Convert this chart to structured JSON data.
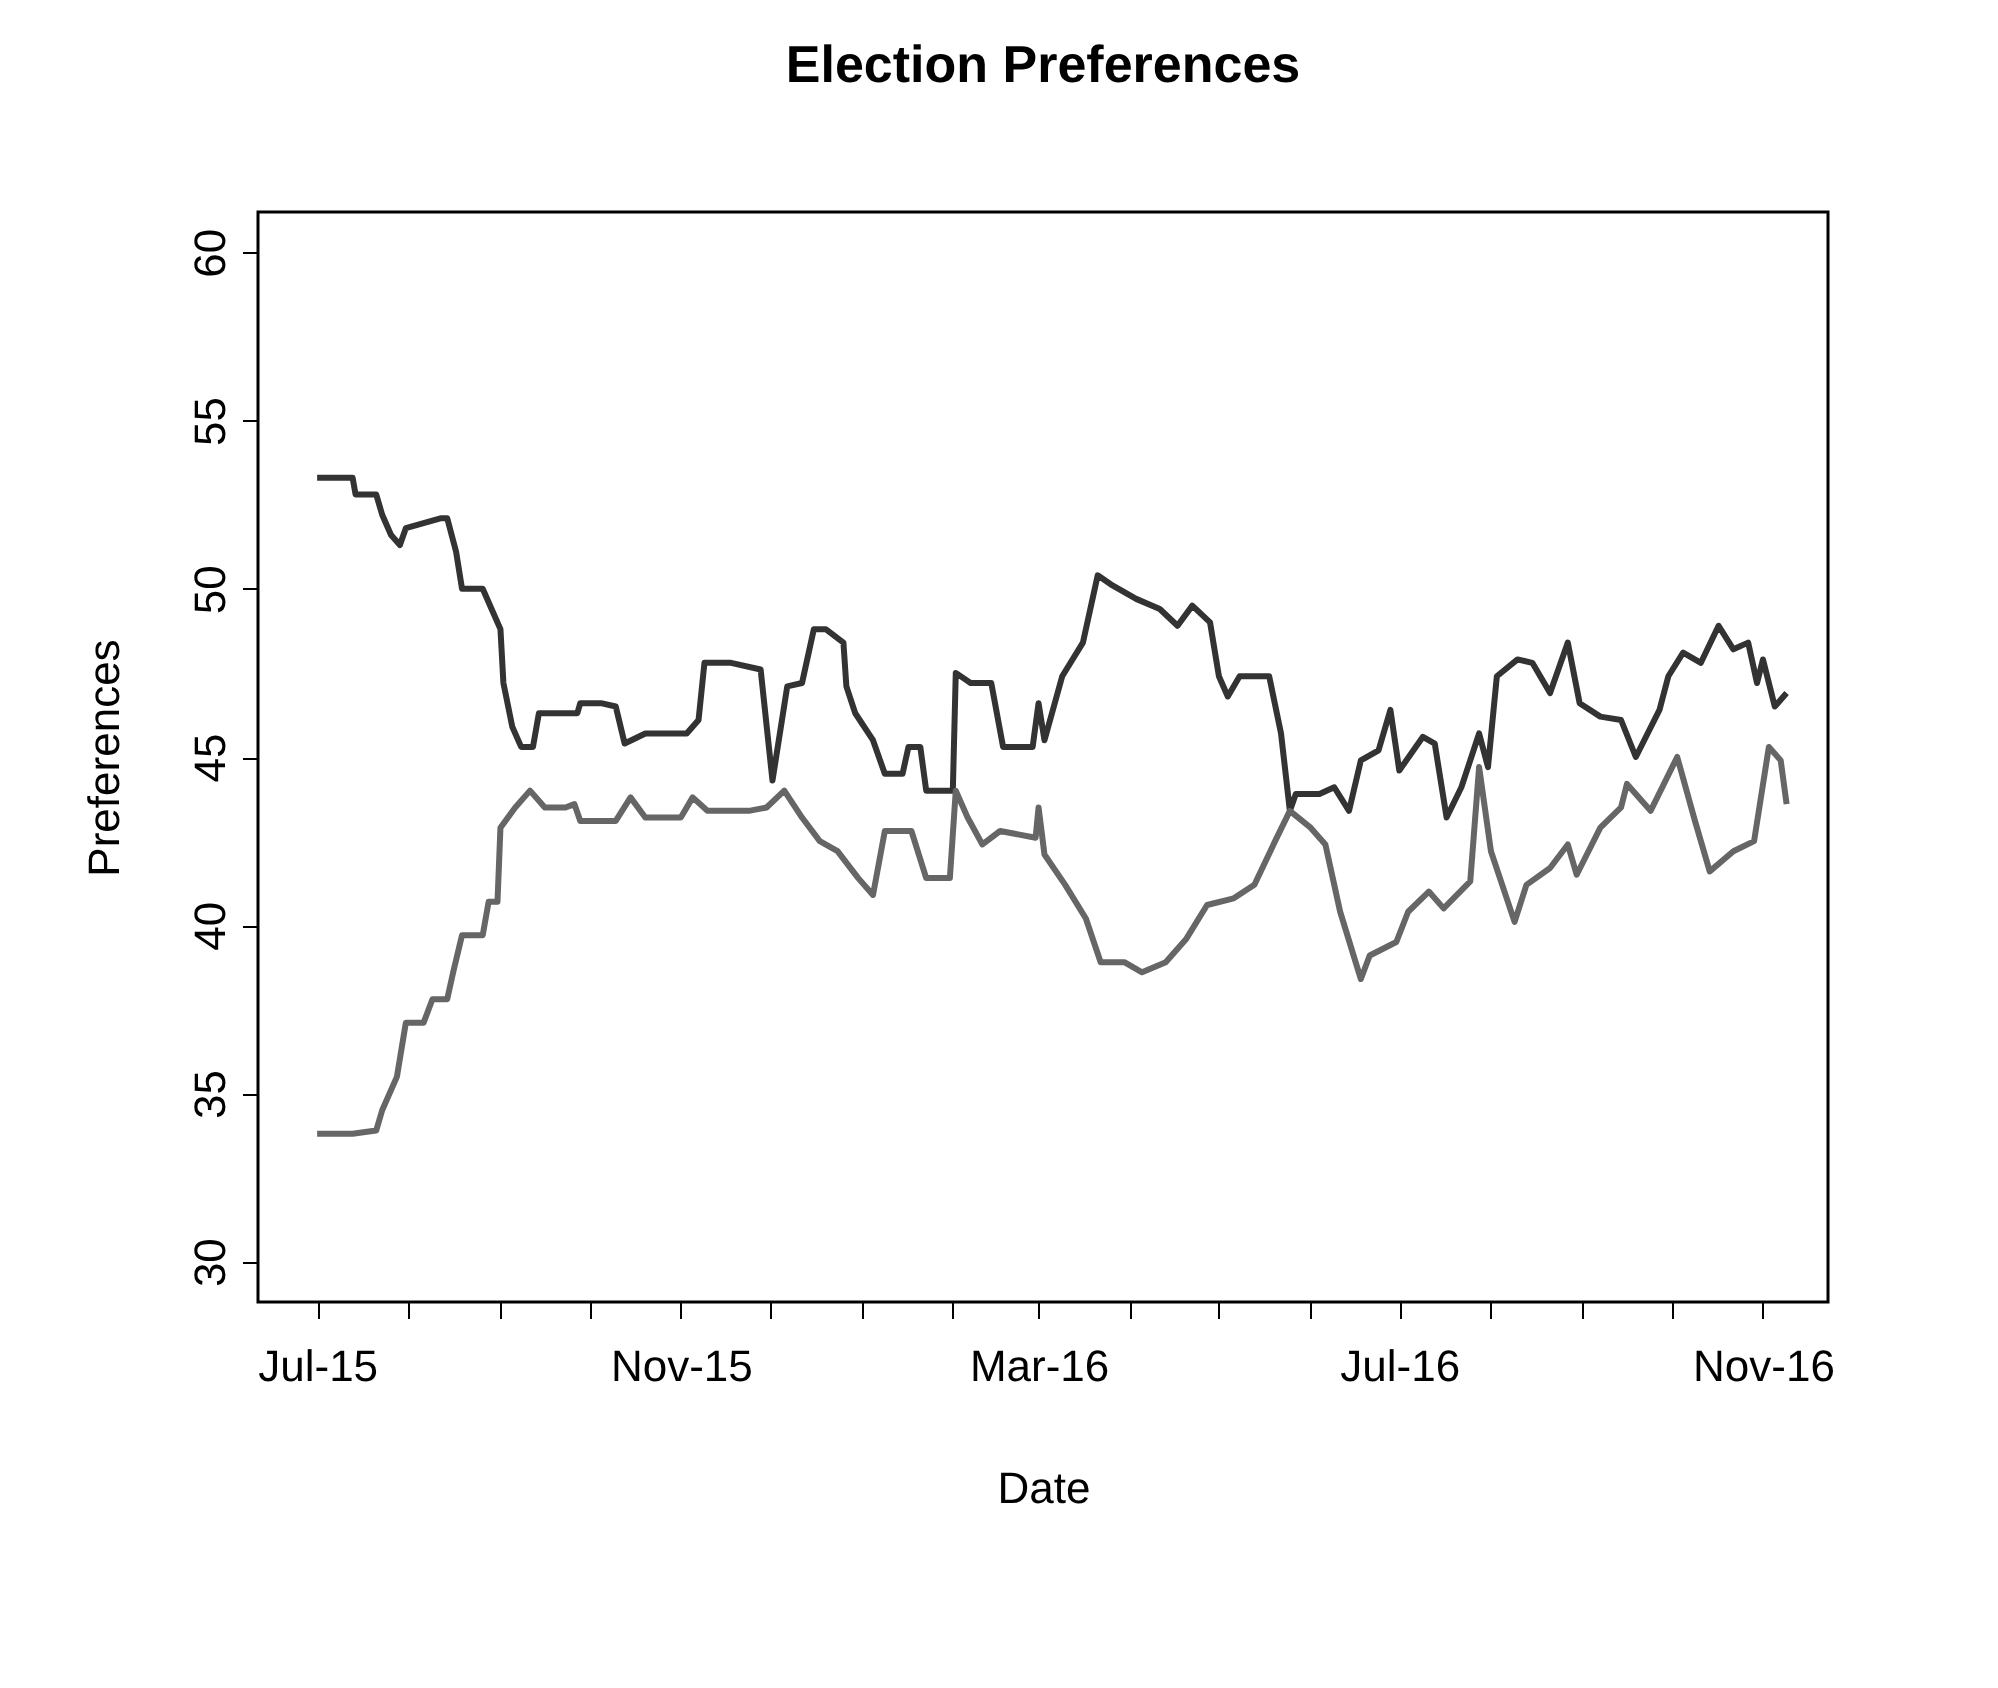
{
  "chart_data": {
    "type": "line",
    "title": "Election Preferences",
    "xlabel": "Date",
    "ylabel": "Preferences",
    "xlim": [
      "2015-06-11",
      "2016-11-23"
    ],
    "ylim": [
      28.8,
      61.2
    ],
    "yticks": [
      30,
      35,
      40,
      45,
      50,
      55,
      60
    ],
    "xticks": [
      {
        "value": "2015-07-01",
        "label": "Jul-15"
      },
      {
        "value": "2015-08-01",
        "label": null
      },
      {
        "value": "2015-09-01",
        "label": null
      },
      {
        "value": "2015-10-01",
        "label": null
      },
      {
        "value": "2015-11-01",
        "label": "Nov-15"
      },
      {
        "value": "2015-12-01",
        "label": null
      },
      {
        "value": "2016-01-01",
        "label": null
      },
      {
        "value": "2016-02-01",
        "label": null
      },
      {
        "value": "2016-03-01",
        "label": "Mar-16"
      },
      {
        "value": "2016-04-01",
        "label": null
      },
      {
        "value": "2016-05-01",
        "label": null
      },
      {
        "value": "2016-06-01",
        "label": null
      },
      {
        "value": "2016-07-01",
        "label": "Jul-16"
      },
      {
        "value": "2016-08-01",
        "label": null
      },
      {
        "value": "2016-09-01",
        "label": null
      },
      {
        "value": "2016-10-01",
        "label": null
      },
      {
        "value": "2016-11-01",
        "label": "Nov-16"
      }
    ],
    "grid": false,
    "series": [
      {
        "color": "#333333",
        "x": [
          "2015-07-01",
          "2015-07-13",
          "2015-07-14",
          "2015-07-21",
          "2015-07-23",
          "2015-07-26",
          "2015-07-29",
          "2015-07-31",
          "2015-08-12",
          "2015-08-14",
          "2015-08-17",
          "2015-08-19",
          "2015-08-26",
          "2015-08-29",
          "2015-09-01",
          "2015-09-02",
          "2015-09-05",
          "2015-09-08",
          "2015-09-12",
          "2015-09-14",
          "2015-09-27",
          "2015-09-28",
          "2015-10-05",
          "2015-10-10",
          "2015-10-13",
          "2015-10-20",
          "2015-11-03",
          "2015-11-07",
          "2015-11-09",
          "2015-11-18",
          "2015-11-28",
          "2015-12-02",
          "2015-12-07",
          "2015-12-12",
          "2015-12-16",
          "2015-12-20",
          "2015-12-26",
          "2015-12-27",
          "2015-12-30",
          "2016-01-05",
          "2016-01-09",
          "2016-01-15",
          "2016-01-17",
          "2016-01-21",
          "2016-01-23",
          "2016-02-01",
          "2016-02-02",
          "2016-02-07",
          "2016-02-14",
          "2016-02-18",
          "2016-02-28",
          "2016-03-01",
          "2016-03-03",
          "2016-03-09",
          "2016-03-16",
          "2016-03-21",
          "2016-03-26",
          "2016-04-03",
          "2016-04-11",
          "2016-04-17",
          "2016-04-22",
          "2016-04-28",
          "2016-05-01",
          "2016-05-04",
          "2016-05-08",
          "2016-05-18",
          "2016-05-22",
          "2016-05-25",
          "2016-05-27",
          "2016-06-04",
          "2016-06-09",
          "2016-06-14",
          "2016-06-18",
          "2016-06-24",
          "2016-06-28",
          "2016-07-01",
          "2016-07-09",
          "2016-07-13",
          "2016-07-17",
          "2016-07-22",
          "2016-07-28",
          "2016-07-31",
          "2016-08-03",
          "2016-08-10",
          "2016-08-15",
          "2016-08-21",
          "2016-08-27",
          "2016-08-31",
          "2016-09-07",
          "2016-09-14",
          "2016-09-19",
          "2016-09-27",
          "2016-09-30",
          "2016-10-05",
          "2016-10-11",
          "2016-10-17",
          "2016-10-22",
          "2016-10-27",
          "2016-10-30",
          "2016-11-01",
          "2016-11-05",
          "2016-11-09"
        ],
        "values": [
          53.3,
          53.3,
          52.8,
          52.8,
          52.2,
          51.6,
          51.3,
          51.8,
          52.1,
          52.1,
          51.1,
          50.0,
          50.0,
          49.4,
          48.8,
          47.2,
          45.9,
          45.3,
          45.3,
          46.3,
          46.3,
          46.6,
          46.6,
          46.5,
          45.4,
          45.7,
          45.7,
          46.1,
          47.8,
          47.8,
          47.6,
          44.3,
          47.1,
          47.2,
          48.8,
          48.8,
          48.4,
          47.1,
          46.3,
          45.5,
          44.5,
          44.5,
          45.3,
          45.3,
          44.0,
          44.0,
          47.5,
          47.2,
          47.2,
          45.3,
          45.3,
          46.6,
          45.5,
          47.4,
          48.4,
          50.4,
          50.1,
          49.7,
          49.4,
          48.9,
          49.5,
          49.0,
          47.4,
          46.8,
          47.4,
          47.4,
          45.7,
          43.4,
          43.9,
          43.9,
          44.1,
          43.4,
          44.9,
          45.2,
          46.4,
          44.6,
          45.6,
          45.4,
          43.2,
          44.1,
          45.7,
          44.7,
          47.4,
          47.9,
          47.8,
          46.9,
          48.4,
          46.6,
          46.2,
          46.1,
          45.0,
          46.4,
          47.4,
          48.1,
          47.8,
          48.9,
          48.2,
          48.4,
          47.2,
          47.9,
          46.5,
          46.9
        ]
      },
      {
        "color": "#666666",
        "x": [
          "2015-07-01",
          "2015-07-13",
          "2015-07-21",
          "2015-07-23",
          "2015-07-28",
          "2015-07-31",
          "2015-08-06",
          "2015-08-09",
          "2015-08-14",
          "2015-08-16",
          "2015-08-19",
          "2015-08-26",
          "2015-08-28",
          "2015-08-31",
          "2015-09-01",
          "2015-09-06",
          "2015-09-11",
          "2015-09-16",
          "2015-09-23",
          "2015-09-26",
          "2015-09-28",
          "2015-10-10",
          "2015-10-15",
          "2015-10-20",
          "2015-11-01",
          "2015-11-05",
          "2015-11-10",
          "2015-11-24",
          "2015-11-30",
          "2015-12-06",
          "2015-12-12",
          "2015-12-18",
          "2015-12-24",
          "2015-12-31",
          "2016-01-05",
          "2016-01-09",
          "2016-01-18",
          "2016-01-23",
          "2016-01-31",
          "2016-02-02",
          "2016-02-06",
          "2016-02-11",
          "2016-02-17",
          "2016-02-29",
          "2016-03-01",
          "2016-03-03",
          "2016-03-10",
          "2016-03-17",
          "2016-03-22",
          "2016-03-30",
          "2016-04-05",
          "2016-04-13",
          "2016-04-20",
          "2016-04-27",
          "2016-05-06",
          "2016-05-13",
          "2016-05-20",
          "2016-05-25",
          "2016-06-01",
          "2016-06-06",
          "2016-06-11",
          "2016-06-18",
          "2016-06-21",
          "2016-06-30",
          "2016-07-04",
          "2016-07-11",
          "2016-07-16",
          "2016-07-25",
          "2016-07-28",
          "2016-08-01",
          "2016-08-09",
          "2016-08-13",
          "2016-08-21",
          "2016-08-27",
          "2016-08-30",
          "2016-09-07",
          "2016-09-14",
          "2016-09-16",
          "2016-09-24",
          "2016-10-03",
          "2016-10-09",
          "2016-10-14",
          "2016-10-22",
          "2016-10-29",
          "2016-11-03",
          "2016-11-07",
          "2016-11-09"
        ],
        "values": [
          33.8,
          33.8,
          33.9,
          34.5,
          35.5,
          37.1,
          37.1,
          37.8,
          37.8,
          38.6,
          39.7,
          39.7,
          40.7,
          40.7,
          42.9,
          43.5,
          44.0,
          43.5,
          43.5,
          43.6,
          43.1,
          43.1,
          43.8,
          43.2,
          43.2,
          43.8,
          43.4,
          43.4,
          43.5,
          44.0,
          43.2,
          42.5,
          42.2,
          41.4,
          40.9,
          42.8,
          42.8,
          41.4,
          41.4,
          44.0,
          43.2,
          42.4,
          42.8,
          42.6,
          43.5,
          42.1,
          41.2,
          40.2,
          38.9,
          38.9,
          38.6,
          38.9,
          39.6,
          40.6,
          40.8,
          41.2,
          42.5,
          43.4,
          42.9,
          42.4,
          40.4,
          38.4,
          39.1,
          39.5,
          40.4,
          41.0,
          40.5,
          41.3,
          44.7,
          42.2,
          40.1,
          41.2,
          41.7,
          42.4,
          41.5,
          42.9,
          43.5,
          44.2,
          43.4,
          45.0,
          43.1,
          41.6,
          42.2,
          42.5,
          45.3,
          44.9,
          43.6
        ]
      }
    ]
  }
}
